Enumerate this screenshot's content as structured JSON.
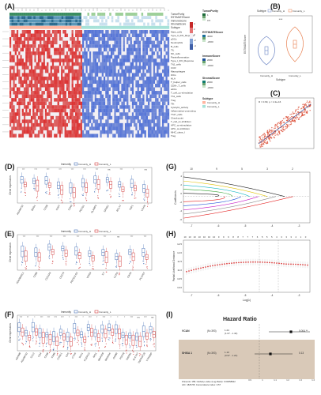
{
  "panels": {
    "A": {
      "label": "(A)",
      "top_tracks": [
        "TumorPurity",
        "ESTIMATEScore",
        "ImmuneScore",
        "StromalScore",
        "Subtype"
      ],
      "rows": [
        "Mast_cells",
        "Type_II_IFN_Reponse",
        "pDCs",
        "Neutrophils",
        "B_cells",
        "TIL",
        "NK_cells",
        "Parainflammation",
        "Type_I_IFN_Reponse",
        "Th2_cells",
        "CCR",
        "Macrophages",
        "iDCs",
        "HLA",
        "T_helper_cells",
        "CD8+_T_cells",
        "aDCs",
        "T_cell_co-stimulation",
        "Th1_cells",
        "Treg",
        "Tfh",
        "Cytolytic_activity",
        "Inflammation-promoting",
        "Th17_cells",
        "Check-point",
        "T_cell_co-inhibition",
        "APC_co-stimulation",
        "APC_co-inhibition",
        "MHC_class_I",
        "Treg"
      ],
      "legend": {
        "tumorpurity": {
          "title": "TumorPurity",
          "ticks": [
            "1",
            "0.5"
          ]
        },
        "estimate": {
          "title": "ESTIMATEScore",
          "ticks": [
            "4000",
            "-2000"
          ]
        },
        "immune": {
          "title": "ImmuneScore",
          "ticks": [
            "2000",
            "-2000"
          ]
        },
        "stromal": {
          "title": "StromalScore",
          "ticks": [
            "2000",
            "-2000"
          ]
        },
        "subtype": {
          "title": "Subtype",
          "items": [
            "Immunity_H",
            "Immunity_L"
          ]
        },
        "heat_ticks": [
          "4",
          "2",
          "0",
          "-2",
          "-4"
        ]
      }
    },
    "B": {
      "label": "(B)",
      "legend_title": "Subtype",
      "legend_items": [
        "Immunity_H",
        "Immunity_L"
      ],
      "ylabel": "ESTIMATEScore",
      "xlabel": "Subtype",
      "sig": "***",
      "x_ticks": [
        "Immunity_H",
        "Immunity_L"
      ]
    },
    "C": {
      "label": "(C)",
      "corr": "R = 0.69, p < 2.2e-16"
    },
    "D": {
      "label": "(D)",
      "legend_title": "Immunity",
      "legend_items": [
        "Immunity_H",
        "Immunity_L"
      ],
      "ylabel": "Gene expression",
      "genes": [
        "ADAMTS2",
        "BDO1",
        "CD38",
        "CD27",
        "CD40",
        "PDCD1",
        "SLAMF6",
        "SPARC",
        "BCL17",
        "TNF1",
        "VCAN"
      ],
      "sig": [
        "***",
        "***",
        "***",
        "***",
        "***",
        "***",
        "***",
        "ns",
        "***",
        "*",
        "ns"
      ]
    },
    "E": {
      "label": "(E)",
      "legend_title": "Immunity",
      "legend_items": [
        "Immunity_H",
        "Immunity_L"
      ],
      "ylabel": "Gene expression",
      "genes": [
        "ADAMDEC1",
        "CD86",
        "COL6A3",
        "CD274",
        "PDCD1LG2",
        "VSIG4",
        "IL7",
        "LILRA",
        "GAS6",
        "PLA2G7"
      ],
      "sig": [
        "***",
        "***",
        "***",
        "***",
        "***",
        "***",
        "***",
        "ns",
        "***",
        "***"
      ]
    },
    "F": {
      "label": "(F)",
      "legend_title": "Immunity",
      "legend_items": [
        "Immunity_H",
        "Immunity_L"
      ],
      "ylabel": "Gene expression",
      "genes": [
        "ADAM8",
        "ADAMTS2",
        "CCL2",
        "CD4",
        "CD48",
        "CD86",
        "CHI3L1",
        "CPS",
        "CTSS",
        "DLK1",
        "FCER1G",
        "IDO1",
        "MAP3K8",
        "MS4A6A",
        "OSMR",
        "P2RY8",
        "SIRPB1",
        "SLC7A7",
        "TNFRSF1B",
        "TYROBP"
      ],
      "sig": [
        "***",
        "**",
        "*",
        "***",
        "***",
        "***",
        "***",
        "*",
        "***",
        "*",
        "***",
        "*",
        "***",
        "*",
        "*",
        "*",
        "***",
        "ns",
        "***",
        "ns"
      ]
    },
    "G": {
      "label": "(G)",
      "top_ticks": [
        "10",
        "9",
        "5",
        "3",
        "2"
      ],
      "x_ticks": [
        "-7",
        "-6",
        "-5",
        "-4",
        "-3"
      ],
      "ylabel": "Coefficients",
      "y_ticks": [
        "4",
        "2",
        "0",
        "-2",
        "-4",
        "-6"
      ]
    },
    "H": {
      "label": "(H)",
      "top_ticks": [
        "10",
        "10",
        "10",
        "10",
        "10",
        "10",
        "10",
        "9",
        "9",
        "9",
        "8",
        "8",
        "7",
        "7",
        "7",
        "6",
        "5",
        "5",
        "5",
        "4",
        "3",
        "3",
        "3",
        "2",
        "1",
        "0"
      ],
      "xlabel": "Log(λ)",
      "ylabel": "Partial Likelihood Deviance",
      "x_ticks": [
        "-7",
        "-6",
        "-5",
        "-4",
        "-3"
      ],
      "y_ticks": [
        "12.5",
        "12.0",
        "11.5",
        "11.0",
        "10.5",
        "10.0"
      ]
    },
    "I": {
      "label": "(I)",
      "title": "Hazard Ratio",
      "rows": [
        {
          "gene": "VCAN",
          "n": "(N=393)",
          "hr": "1.24\n(1.07 - 1.44)",
          "p": "0.004 **"
        },
        {
          "gene": "SHISA 1",
          "n": "(N=393)",
          "hr": "1.10\n(0.97 - 1.24)",
          "p": "0.13"
        }
      ],
      "footer": "# Events: 158; Global p-value (Log-Rank): 0.00058922\nAIC: 1825.55; Concordance Index: 0.57",
      "x_ticks": [
        "0.9",
        "1",
        "1.1",
        "1.2",
        "1.3",
        "1.4"
      ]
    }
  },
  "colors": {
    "high": "#d73027",
    "low": "#4575b4",
    "subtype_h": "#ffb6a0",
    "subtype_l": "#a6e2d8",
    "green1": "#2f8f5b",
    "green2": "#a3d7a7",
    "bg_I": "#d9c9b8"
  }
}
